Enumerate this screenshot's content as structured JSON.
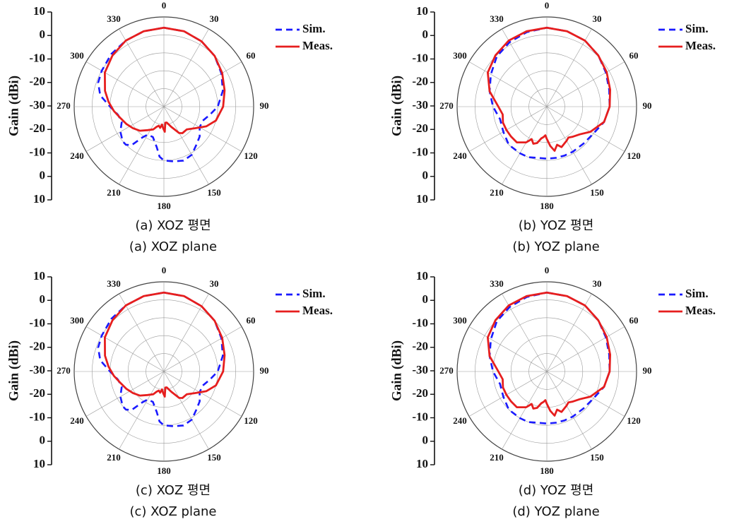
{
  "charts": [
    {
      "caption_ko": "(a)  XOZ  평면",
      "caption_en": "(a)  XOZ  plane"
    },
    {
      "caption_ko": "(b)  YOZ  평면",
      "caption_en": "(b)  YOZ  plane"
    },
    {
      "caption_ko": "(c)  XOZ  평면",
      "caption_en": "(c)  XOZ  plane"
    },
    {
      "caption_ko": "(d)  YOZ  평면",
      "caption_en": "(d)  YOZ  plane"
    }
  ],
  "colors": {
    "sim": "#1a1aff",
    "meas": "#e61e1e",
    "grid": "#9a9a9a"
  },
  "chart_data": [
    {
      "type": "line",
      "polar": true,
      "ylabel": "Gain (dBi)",
      "r_tick_labels": [
        "10",
        "0",
        "-10",
        "-20",
        "-30",
        "-20",
        "-10",
        "0",
        "10"
      ],
      "r_range": [
        -40,
        10
      ],
      "angle_ticks": [
        0,
        30,
        60,
        90,
        120,
        150,
        180,
        210,
        240,
        270,
        300,
        330
      ],
      "legend": [
        "Sim.",
        "Meas."
      ],
      "legend_position": "top-right",
      "series": [
        {
          "name": "Sim.",
          "style": "dashed",
          "angles": [
            0,
            15,
            30,
            45,
            60,
            75,
            90,
            100,
            110,
            120,
            130,
            140,
            150,
            160,
            170,
            180,
            185,
            190,
            200,
            210,
            215,
            220,
            225,
            230,
            240,
            250,
            260,
            270,
            280,
            290,
            300,
            315,
            330,
            345
          ],
          "gain_dbi": [
            4,
            3.5,
            2,
            0,
            -3,
            -6,
            -10,
            -14,
            -17,
            -17,
            -14,
            -12,
            -9,
            -8,
            -9,
            -10,
            -12,
            -17,
            -22,
            -22,
            -19,
            -12,
            -10,
            -10,
            -12,
            -15,
            -14,
            -10,
            -4,
            -1,
            0,
            1.5,
            2.5,
            3.5
          ]
        },
        {
          "name": "Meas.",
          "style": "solid",
          "angles": [
            0,
            15,
            30,
            45,
            60,
            75,
            90,
            105,
            115,
            125,
            135,
            145,
            150,
            160,
            170,
            175,
            178,
            182,
            186,
            190,
            195,
            200,
            205,
            215,
            225,
            235,
            245,
            255,
            265,
            275,
            285,
            300,
            315,
            330,
            345
          ],
          "gain_dbi": [
            4,
            3.5,
            2,
            0,
            -2.5,
            -5,
            -7,
            -10,
            -14,
            -19,
            -22,
            -22,
            -23,
            -28,
            -31,
            -31,
            -26,
            -28,
            -30,
            -28,
            -29,
            -28,
            -26,
            -24,
            -21,
            -19,
            -17,
            -15,
            -12,
            -9,
            -6,
            -2,
            0.5,
            2.5,
            3.5
          ]
        }
      ]
    },
    {
      "type": "line",
      "polar": true,
      "ylabel": "Gain (dBi)",
      "r_tick_labels": [
        "10",
        "0",
        "-10",
        "-20",
        "-30",
        "-20",
        "-10",
        "0",
        "10"
      ],
      "r_range": [
        -40,
        10
      ],
      "angle_ticks": [
        0,
        30,
        60,
        90,
        120,
        150,
        180,
        210,
        240,
        270,
        300,
        330
      ],
      "legend": [
        "Sim.",
        "Meas."
      ],
      "legend_position": "top-right",
      "series": [
        {
          "name": "Sim.",
          "style": "dashed",
          "angles": [
            0,
            15,
            30,
            45,
            60,
            75,
            90,
            105,
            120,
            135,
            150,
            160,
            170,
            180,
            190,
            200,
            210,
            225,
            240,
            255,
            270,
            285,
            300,
            315,
            330,
            345
          ],
          "gain_dbi": [
            4,
            3.5,
            2.5,
            0.5,
            -2,
            -4,
            -5,
            -7,
            -10,
            -11,
            -11,
            -11,
            -11,
            -11,
            -11,
            -10,
            -10,
            -10,
            -12,
            -13,
            -10,
            -7,
            -4,
            -0.5,
            1.5,
            3
          ]
        },
        {
          "name": "Meas.",
          "style": "solid",
          "angles": [
            0,
            15,
            30,
            45,
            60,
            75,
            90,
            105,
            120,
            130,
            140,
            145,
            150,
            160,
            165,
            170,
            175,
            180,
            183,
            186,
            190,
            195,
            200,
            205,
            210,
            220,
            230,
            240,
            250,
            260,
            270,
            285,
            300,
            315,
            330,
            345
          ],
          "gain_dbi": [
            4,
            3.5,
            2.5,
            0.5,
            -1.5,
            -3.5,
            -5,
            -7,
            -12,
            -16,
            -18,
            -19,
            -18,
            -16,
            -18,
            -15,
            -18,
            -22,
            -24,
            -23,
            -22,
            -19,
            -18,
            -20,
            -17,
            -14,
            -14,
            -14,
            -14,
            -15,
            -13,
            -7,
            -2,
            0.5,
            2.5,
            3.5
          ]
        }
      ]
    },
    {
      "type": "line",
      "polar": true,
      "ylabel": "Gain (dBi)",
      "r_tick_labels": [
        "10",
        "0",
        "-10",
        "-20",
        "-30",
        "-20",
        "-10",
        "0",
        "10"
      ],
      "r_range": [
        -40,
        10
      ],
      "angle_ticks": [
        0,
        30,
        60,
        90,
        120,
        150,
        180,
        210,
        240,
        270,
        300,
        330
      ],
      "legend": [
        "Sim.",
        "Meas."
      ],
      "legend_position": "top-right",
      "series": [
        {
          "name": "Sim.",
          "style": "dashed",
          "angles": [
            0,
            15,
            30,
            45,
            60,
            75,
            90,
            100,
            110,
            120,
            130,
            140,
            150,
            160,
            170,
            180,
            185,
            190,
            200,
            210,
            215,
            220,
            225,
            230,
            240,
            250,
            260,
            270,
            280,
            290,
            300,
            315,
            330,
            345
          ],
          "gain_dbi": [
            4,
            3.5,
            2,
            0,
            -3,
            -6,
            -10,
            -14,
            -17,
            -17,
            -14,
            -12,
            -9,
            -8,
            -9,
            -10,
            -12,
            -17,
            -22,
            -22,
            -19,
            -12,
            -10,
            -10,
            -12,
            -15,
            -14,
            -10,
            -4,
            -1,
            0,
            1.5,
            2.5,
            3.5
          ]
        },
        {
          "name": "Meas.",
          "style": "solid",
          "angles": [
            0,
            15,
            30,
            45,
            60,
            75,
            90,
            105,
            115,
            125,
            135,
            145,
            150,
            160,
            170,
            175,
            178,
            182,
            186,
            190,
            195,
            200,
            205,
            215,
            225,
            235,
            245,
            255,
            265,
            275,
            285,
            300,
            315,
            330,
            345
          ],
          "gain_dbi": [
            4,
            3.5,
            2,
            0,
            -2.5,
            -5,
            -7,
            -10,
            -14,
            -19,
            -22,
            -22,
            -23,
            -28,
            -31,
            -31,
            -26,
            -28,
            -30,
            -28,
            -29,
            -28,
            -26,
            -24,
            -21,
            -19,
            -17,
            -15,
            -12,
            -9,
            -6,
            -2,
            0.5,
            2.5,
            3.5
          ]
        }
      ]
    },
    {
      "type": "line",
      "polar": true,
      "ylabel": "Gain (dBi)",
      "r_tick_labels": [
        "10",
        "0",
        "-10",
        "-20",
        "-30",
        "-20",
        "-10",
        "0",
        "10"
      ],
      "r_range": [
        -40,
        10
      ],
      "angle_ticks": [
        0,
        30,
        60,
        90,
        120,
        150,
        180,
        210,
        240,
        270,
        300,
        330
      ],
      "legend": [
        "Sim.",
        "Meas."
      ],
      "legend_position": "top-right",
      "series": [
        {
          "name": "Sim.",
          "style": "dashed",
          "angles": [
            0,
            15,
            30,
            45,
            60,
            75,
            90,
            105,
            120,
            135,
            150,
            160,
            170,
            180,
            190,
            200,
            210,
            225,
            240,
            255,
            270,
            285,
            300,
            315,
            330,
            345
          ],
          "gain_dbi": [
            4,
            3.5,
            2.5,
            0.5,
            -2,
            -4,
            -5,
            -7,
            -10,
            -11,
            -11,
            -11,
            -11,
            -11,
            -11,
            -10,
            -10,
            -10,
            -12,
            -13,
            -10,
            -7,
            -4,
            -0.5,
            1.5,
            3
          ]
        },
        {
          "name": "Meas.",
          "style": "solid",
          "angles": [
            0,
            15,
            30,
            45,
            60,
            75,
            90,
            105,
            120,
            130,
            140,
            145,
            150,
            160,
            165,
            170,
            175,
            180,
            183,
            186,
            190,
            195,
            200,
            205,
            210,
            220,
            230,
            240,
            250,
            260,
            270,
            285,
            300,
            315,
            330,
            345
          ],
          "gain_dbi": [
            4,
            3.5,
            2.5,
            0.5,
            -1.5,
            -3.5,
            -5,
            -7,
            -12,
            -16,
            -18,
            -19,
            -18,
            -16,
            -18,
            -15,
            -18,
            -22,
            -24,
            -23,
            -22,
            -19,
            -18,
            -20,
            -17,
            -14,
            -14,
            -14,
            -14,
            -15,
            -13,
            -7,
            -2,
            0.5,
            2.5,
            3.5
          ]
        }
      ]
    }
  ]
}
